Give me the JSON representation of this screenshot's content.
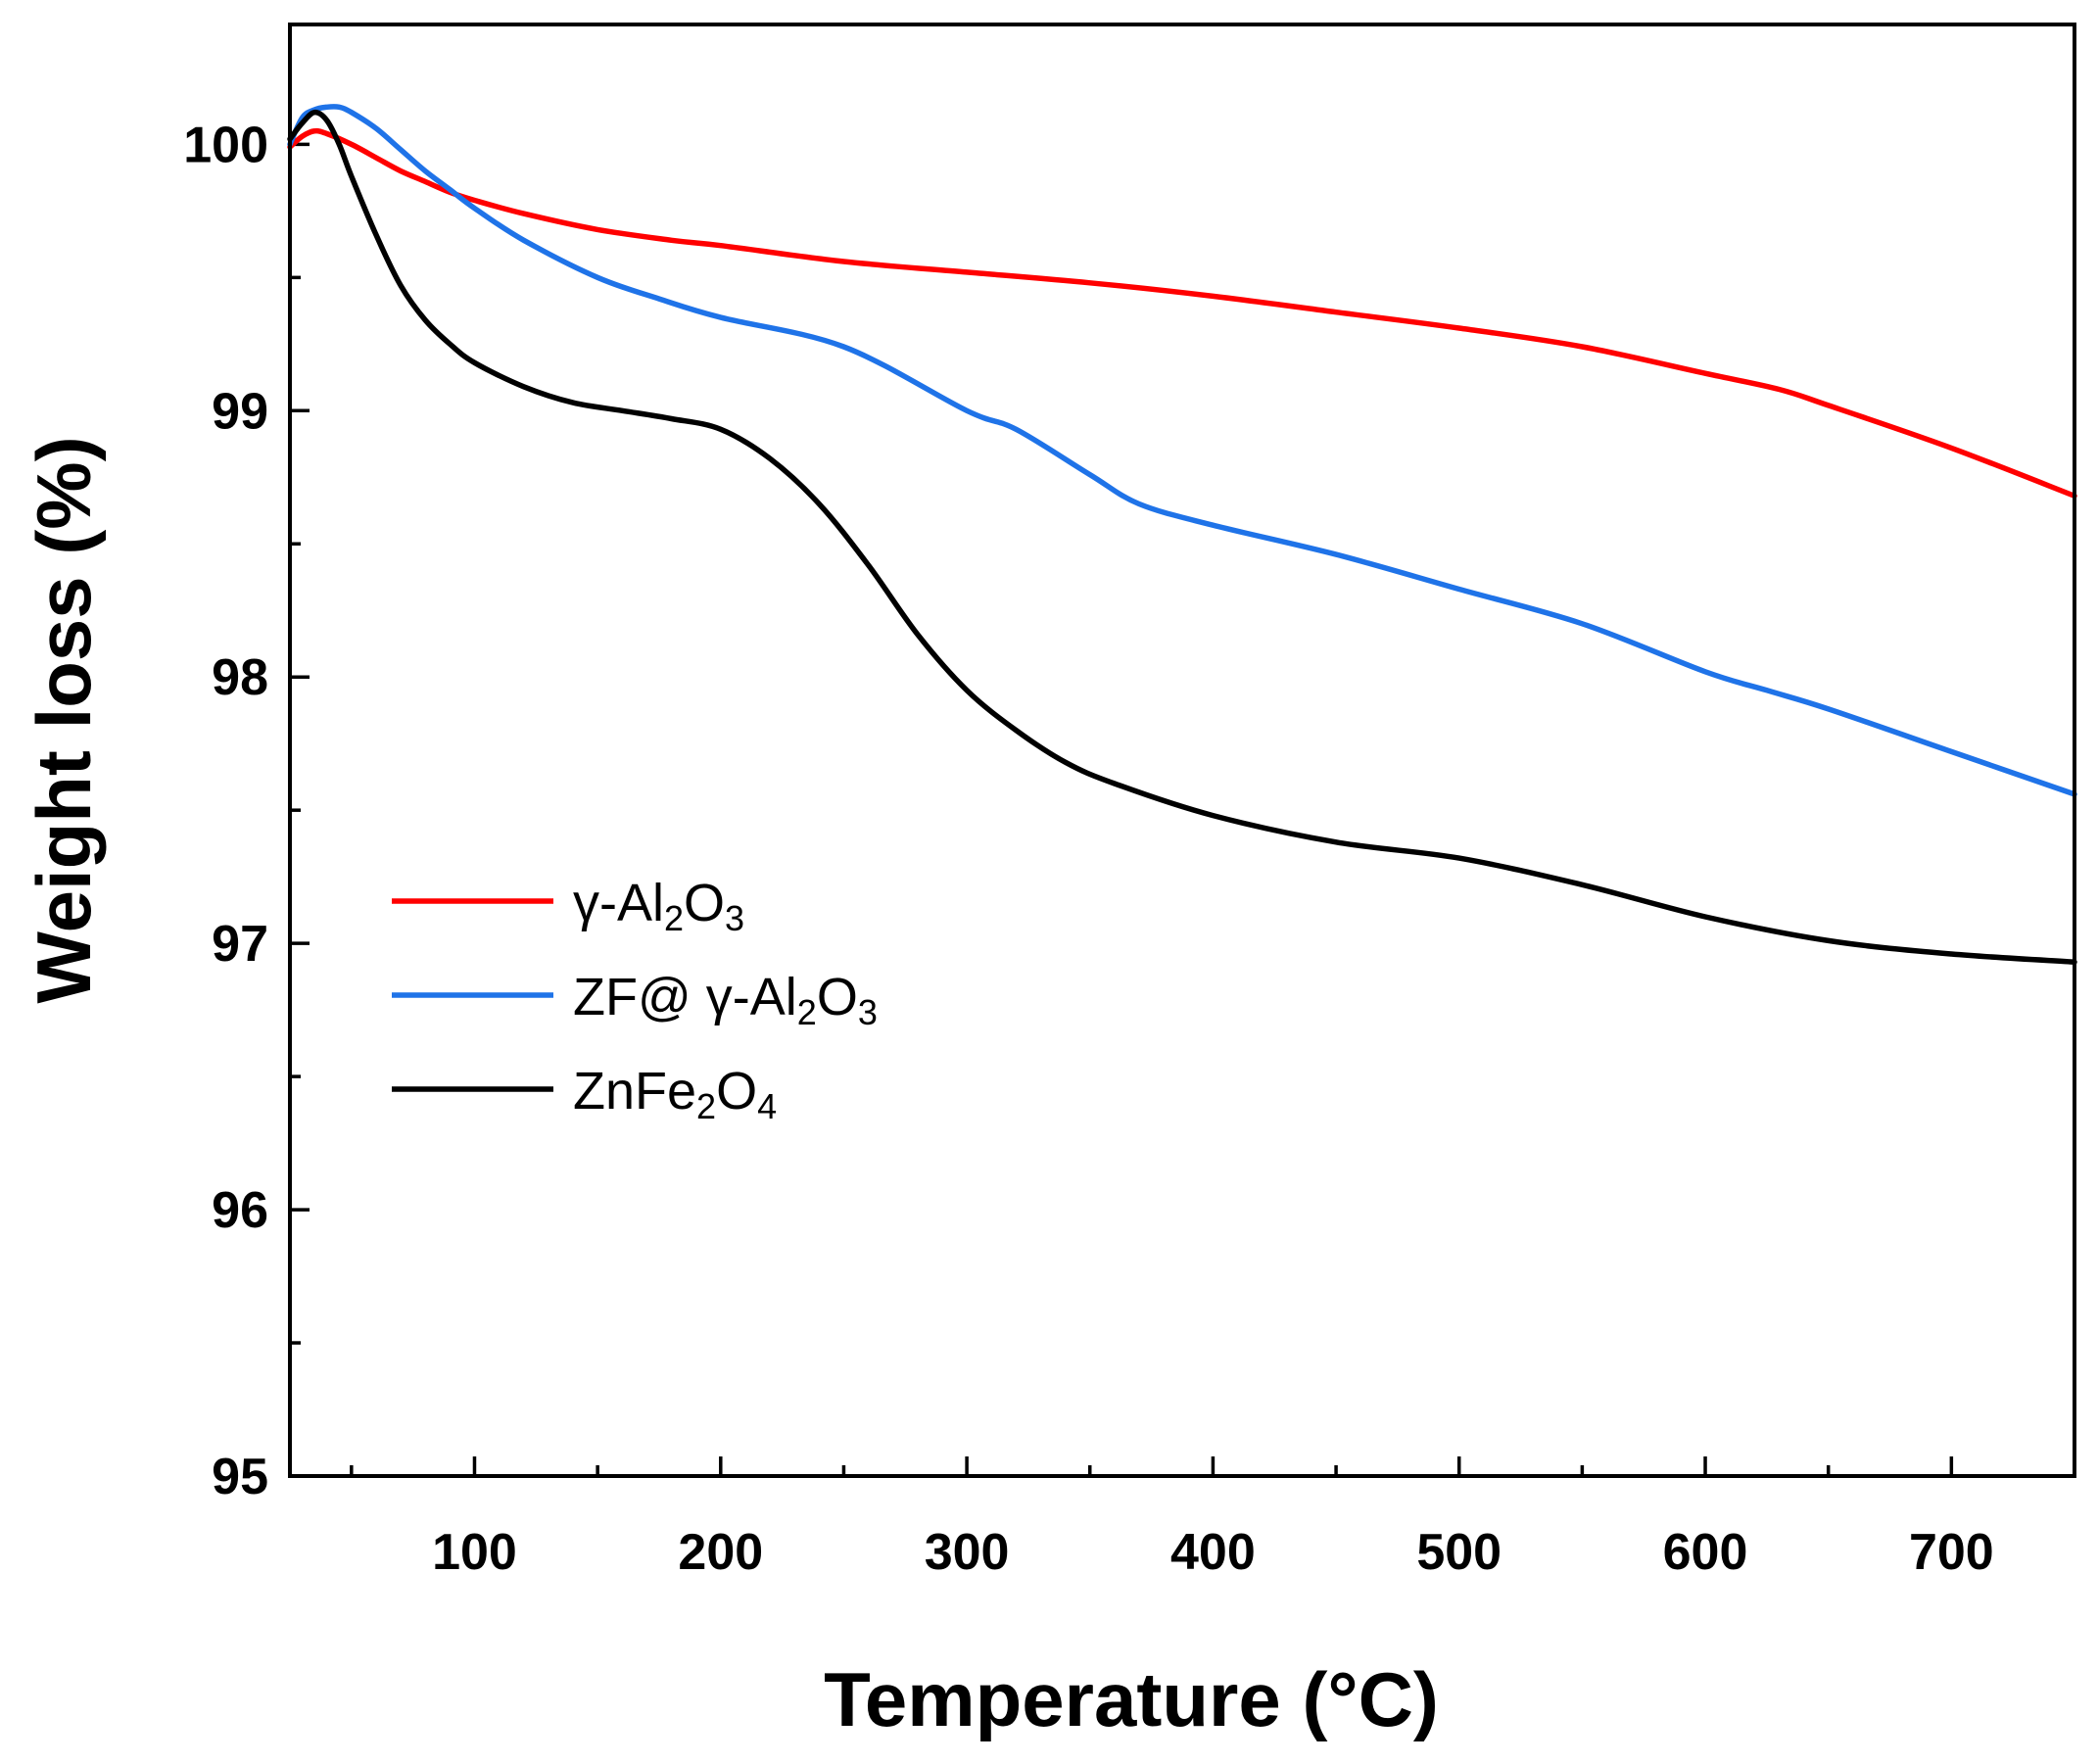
{
  "chart_data": {
    "type": "line",
    "title": "",
    "xlabel": "Temperature (°C)",
    "ylabel": "Weight loss (%)",
    "xlim": [
      25,
      750
    ],
    "ylim": [
      95,
      100.45
    ],
    "xticks": [
      100,
      200,
      300,
      400,
      500,
      600,
      700
    ],
    "xtick_labels": [
      "100",
      "200",
      "300",
      "400",
      "500",
      "600",
      "700"
    ],
    "xminor": [
      50,
      150,
      250,
      350,
      450,
      550,
      650
    ],
    "yticks": [
      95,
      96,
      97,
      98,
      99,
      100
    ],
    "ytick_labels": [
      "95",
      "96",
      "97",
      "98",
      "99",
      "100"
    ],
    "yminor": [
      95.5,
      96.5,
      97.5,
      98.5,
      99.5
    ],
    "legend_position": "center-left",
    "series": [
      {
        "name": "γ-Al2O3",
        "legend": {
          "pre": "γ-Al",
          "sub1": "2",
          "mid": "O",
          "sub2": "3"
        },
        "color": "#ff0000",
        "points": [
          [
            25,
            99.99
          ],
          [
            30,
            100.03
          ],
          [
            35,
            100.05
          ],
          [
            40,
            100.04
          ],
          [
            50,
            100.0
          ],
          [
            60,
            99.95
          ],
          [
            70,
            99.9
          ],
          [
            80,
            99.86
          ],
          [
            90,
            99.82
          ],
          [
            100,
            99.79
          ],
          [
            120,
            99.74
          ],
          [
            150,
            99.68
          ],
          [
            180,
            99.64
          ],
          [
            200,
            99.62
          ],
          [
            250,
            99.56
          ],
          [
            300,
            99.52
          ],
          [
            350,
            99.48
          ],
          [
            400,
            99.43
          ],
          [
            450,
            99.37
          ],
          [
            500,
            99.31
          ],
          [
            550,
            99.24
          ],
          [
            600,
            99.14
          ],
          [
            630,
            99.08
          ],
          [
            650,
            99.02
          ],
          [
            700,
            98.86
          ],
          [
            750,
            98.68
          ]
        ]
      },
      {
        "name": "ZF@ γ-Al2O3",
        "legend": {
          "pre": "ZF@ γ-Al",
          "sub1": "2",
          "mid": "O",
          "sub2": "3"
        },
        "color": "#1f73e8",
        "points": [
          [
            25,
            100.0
          ],
          [
            30,
            100.1
          ],
          [
            35,
            100.13
          ],
          [
            40,
            100.14
          ],
          [
            45,
            100.14
          ],
          [
            50,
            100.12
          ],
          [
            60,
            100.06
          ],
          [
            70,
            99.98
          ],
          [
            80,
            99.9
          ],
          [
            90,
            99.83
          ],
          [
            100,
            99.76
          ],
          [
            120,
            99.64
          ],
          [
            150,
            99.5
          ],
          [
            175,
            99.42
          ],
          [
            200,
            99.35
          ],
          [
            250,
            99.24
          ],
          [
            300,
            99.0
          ],
          [
            320,
            98.93
          ],
          [
            350,
            98.76
          ],
          [
            370,
            98.65
          ],
          [
            400,
            98.57
          ],
          [
            450,
            98.46
          ],
          [
            500,
            98.33
          ],
          [
            550,
            98.2
          ],
          [
            600,
            98.02
          ],
          [
            625,
            97.95
          ],
          [
            650,
            97.88
          ],
          [
            700,
            97.72
          ],
          [
            750,
            97.56
          ]
        ]
      },
      {
        "name": "ZnFe2O4",
        "legend": {
          "pre": "ZnFe",
          "sub1": "2",
          "mid": "O",
          "sub2": "4"
        },
        "color": "#000000",
        "points": [
          [
            25,
            100.02
          ],
          [
            30,
            100.08
          ],
          [
            35,
            100.12
          ],
          [
            40,
            100.09
          ],
          [
            45,
            100.0
          ],
          [
            50,
            99.88
          ],
          [
            60,
            99.66
          ],
          [
            70,
            99.47
          ],
          [
            80,
            99.34
          ],
          [
            90,
            99.25
          ],
          [
            100,
            99.18
          ],
          [
            120,
            99.09
          ],
          [
            140,
            99.03
          ],
          [
            160,
            99.0
          ],
          [
            180,
            98.97
          ],
          [
            200,
            98.93
          ],
          [
            220,
            98.82
          ],
          [
            240,
            98.65
          ],
          [
            260,
            98.42
          ],
          [
            280,
            98.16
          ],
          [
            300,
            97.95
          ],
          [
            320,
            97.8
          ],
          [
            340,
            97.68
          ],
          [
            360,
            97.6
          ],
          [
            400,
            97.48
          ],
          [
            450,
            97.38
          ],
          [
            500,
            97.32
          ],
          [
            550,
            97.22
          ],
          [
            600,
            97.1
          ],
          [
            650,
            97.01
          ],
          [
            700,
            96.96
          ],
          [
            750,
            96.93
          ]
        ]
      }
    ]
  }
}
